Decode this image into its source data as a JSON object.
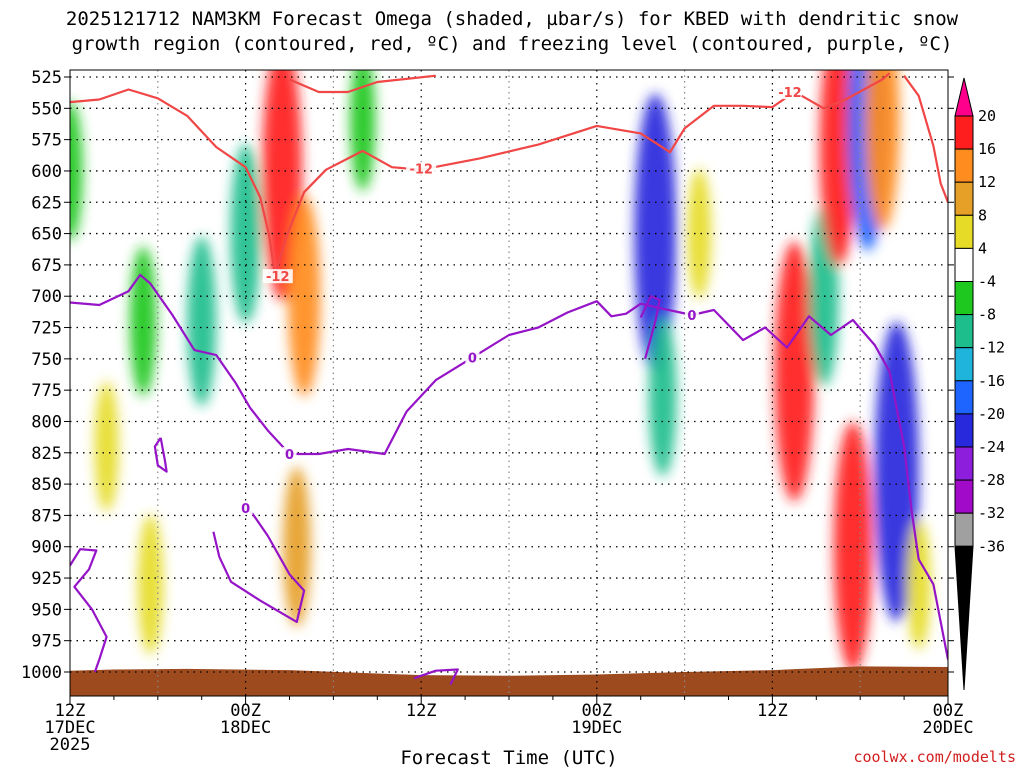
{
  "chart_data": {
    "type": "heatmap",
    "title_line1": "2025121712 NAM3KM Forecast Omega (shaded, µbar/s) for KBED with dendritic snow",
    "title_line2": "growth region (contoured, red, ºC) and freezing level (contoured, purple, ºC)",
    "xlabel": "Forecast Time (UTC)",
    "credit": "coolwx.com/modelts",
    "x_range_hours": [
      0,
      60
    ],
    "x_ticks": [
      {
        "hour": 0,
        "l1": "12Z",
        "l2": "17DEC",
        "l3": "2025"
      },
      {
        "hour": 12,
        "l1": "00Z",
        "l2": "18DEC",
        "l3": ""
      },
      {
        "hour": 24,
        "l1": "12Z",
        "l2": "",
        "l3": ""
      },
      {
        "hour": 36,
        "l1": "00Z",
        "l2": "19DEC",
        "l3": ""
      },
      {
        "hour": 48,
        "l1": "12Z",
        "l2": "",
        "l3": ""
      },
      {
        "hour": 60,
        "l1": "00Z",
        "l2": "20DEC",
        "l3": ""
      }
    ],
    "y_range_mb": [
      1000,
      525
    ],
    "y_ticks": [
      525,
      550,
      575,
      600,
      625,
      650,
      675,
      700,
      725,
      750,
      775,
      800,
      825,
      850,
      875,
      900,
      925,
      950,
      975,
      1000
    ],
    "grid": true,
    "colorbar": {
      "labels": [
        "20",
        "16",
        "12",
        "8",
        "4",
        "-4",
        "-8",
        "-12",
        "-16",
        "-20",
        "-24",
        "-28",
        "-32",
        "-36"
      ],
      "colors": [
        "#ff008c",
        "#ff1e1e",
        "#ff8c1e",
        "#e6a028",
        "#e6dc28",
        "#ffffff",
        "#1ec81e",
        "#1ebe8c",
        "#1eb4dc",
        "#1e64ff",
        "#2828dc",
        "#8c1edc",
        "#a00ac8",
        "#a0a0a0",
        "#000000"
      ]
    },
    "omega_cells": [
      {
        "t": 0.0,
        "p": 600,
        "value": -6
      },
      {
        "t": 5.0,
        "p": 720,
        "value": -7
      },
      {
        "t": 9.0,
        "p": 720,
        "value": -9
      },
      {
        "t": 12.0,
        "p": 650,
        "value": -10
      },
      {
        "t": 2.5,
        "p": 820,
        "value": 5
      },
      {
        "t": 5.5,
        "p": 930,
        "value": 6
      },
      {
        "t": 14.5,
        "p": 600,
        "value": 18
      },
      {
        "t": 16.0,
        "p": 700,
        "value": 12
      },
      {
        "t": 15.5,
        "p": 900,
        "value": 8
      },
      {
        "t": 20.0,
        "p": 560,
        "value": -6
      },
      {
        "t": 40.0,
        "p": 650,
        "value": -20
      },
      {
        "t": 40.5,
        "p": 780,
        "value": -8
      },
      {
        "t": 43.0,
        "p": 650,
        "value": 5
      },
      {
        "t": 49.5,
        "p": 760,
        "value": 18
      },
      {
        "t": 51.5,
        "p": 700,
        "value": -10
      },
      {
        "t": 52.5,
        "p": 580,
        "value": 16
      },
      {
        "t": 53.5,
        "p": 900,
        "value": 17
      },
      {
        "t": 54.5,
        "p": 560,
        "value": -18
      },
      {
        "t": 55.5,
        "p": 560,
        "value": 14
      },
      {
        "t": 56.5,
        "p": 840,
        "value": -22
      },
      {
        "t": 58.0,
        "p": 930,
        "value": 5
      }
    ],
    "ground_surface_mb": [
      {
        "t": 0,
        "p": 999
      },
      {
        "t": 3,
        "p": 998
      },
      {
        "t": 8,
        "p": 997.5
      },
      {
        "t": 15,
        "p": 998.5
      },
      {
        "t": 24,
        "p": 1002.5
      },
      {
        "t": 30,
        "p": 1003
      },
      {
        "t": 36,
        "p": 1002
      },
      {
        "t": 42,
        "p": 1000
      },
      {
        "t": 48,
        "p": 998.5
      },
      {
        "t": 54,
        "p": 995.5
      },
      {
        "t": 60,
        "p": 996
      }
    ],
    "dgz_contours": [
      {
        "label": "-12",
        "label_points": [
          {
            "t": 14.2,
            "p": 684
          },
          {
            "t": 24.0,
            "p": 598
          },
          {
            "t": 49.2,
            "p": 537
          }
        ],
        "points": [
          {
            "t": 0.0,
            "p": 545
          },
          {
            "t": 2.0,
            "p": 543
          },
          {
            "t": 4.0,
            "p": 535
          },
          {
            "t": 6.0,
            "p": 542
          },
          {
            "t": 8.0,
            "p": 556
          },
          {
            "t": 10.0,
            "p": 581
          },
          {
            "t": 12.0,
            "p": 597
          },
          {
            "t": 13.0,
            "p": 621
          },
          {
            "t": 13.6,
            "p": 651
          },
          {
            "t": 14.0,
            "p": 683
          },
          {
            "t": 14.8,
            "p": 652
          },
          {
            "t": 16.0,
            "p": 617
          },
          {
            "t": 17.5,
            "p": 599
          },
          {
            "t": 20.0,
            "p": 584
          },
          {
            "t": 22.0,
            "p": 597
          },
          {
            "t": 24.0,
            "p": 599
          },
          {
            "t": 28.0,
            "p": 590
          },
          {
            "t": 32.0,
            "p": 579
          },
          {
            "t": 36.0,
            "p": 564
          },
          {
            "t": 39.0,
            "p": 570
          },
          {
            "t": 41.0,
            "p": 585
          },
          {
            "t": 42.0,
            "p": 566
          },
          {
            "t": 44.0,
            "p": 548
          },
          {
            "t": 46.0,
            "p": 548
          },
          {
            "t": 48.0,
            "p": 549
          },
          {
            "t": 49.5,
            "p": 537
          }
        ]
      },
      {
        "label": "",
        "label_points": [],
        "points": [
          {
            "t": 15.0,
            "p": 527
          },
          {
            "t": 17.0,
            "p": 537
          },
          {
            "t": 19.0,
            "p": 537
          },
          {
            "t": 21.0,
            "p": 529
          },
          {
            "t": 25.0,
            "p": 524
          }
        ]
      },
      {
        "label": "",
        "label_points": [],
        "points": [
          {
            "t": 50.0,
            "p": 540
          },
          {
            "t": 51.5,
            "p": 550
          },
          {
            "t": 53.0,
            "p": 543
          },
          {
            "t": 55.5,
            "p": 527
          },
          {
            "t": 56.0,
            "p": 522
          }
        ]
      },
      {
        "label": "",
        "label_points": [],
        "points": [
          {
            "t": 57.0,
            "p": 524
          },
          {
            "t": 58.0,
            "p": 540
          },
          {
            "t": 59.0,
            "p": 580
          },
          {
            "t": 59.5,
            "p": 610
          },
          {
            "t": 60.0,
            "p": 625
          }
        ]
      }
    ],
    "freezing_contours": [
      {
        "label": "0",
        "label_points": [
          {
            "t": 15.0,
            "p": 826
          },
          {
            "t": 27.5,
            "p": 749
          },
          {
            "t": 42.5,
            "p": 715
          }
        ],
        "points": [
          {
            "t": 0.0,
            "p": 705
          },
          {
            "t": 2.0,
            "p": 707
          },
          {
            "t": 4.0,
            "p": 696
          },
          {
            "t": 4.8,
            "p": 683
          },
          {
            "t": 5.5,
            "p": 690
          },
          {
            "t": 7.0,
            "p": 715
          },
          {
            "t": 8.5,
            "p": 743
          },
          {
            "t": 10.0,
            "p": 747
          },
          {
            "t": 11.3,
            "p": 769
          },
          {
            "t": 12.3,
            "p": 789
          },
          {
            "t": 13.5,
            "p": 807
          },
          {
            "t": 15.0,
            "p": 826
          },
          {
            "t": 17.0,
            "p": 826
          },
          {
            "t": 19.0,
            "p": 822
          },
          {
            "t": 21.5,
            "p": 826
          },
          {
            "t": 23.0,
            "p": 792
          },
          {
            "t": 25.0,
            "p": 767
          },
          {
            "t": 27.5,
            "p": 749
          },
          {
            "t": 30.0,
            "p": 731
          },
          {
            "t": 32.0,
            "p": 725
          },
          {
            "t": 34.0,
            "p": 713
          },
          {
            "t": 36.0,
            "p": 704
          },
          {
            "t": 37.0,
            "p": 716
          },
          {
            "t": 38.0,
            "p": 714
          },
          {
            "t": 39.0,
            "p": 706
          },
          {
            "t": 40.5,
            "p": 710
          },
          {
            "t": 42.5,
            "p": 715
          },
          {
            "t": 44.0,
            "p": 711
          },
          {
            "t": 46.0,
            "p": 735
          },
          {
            "t": 47.5,
            "p": 725
          },
          {
            "t": 49.0,
            "p": 741
          },
          {
            "t": 50.5,
            "p": 716
          },
          {
            "t": 52.0,
            "p": 731
          },
          {
            "t": 53.5,
            "p": 719
          },
          {
            "t": 55.0,
            "p": 739
          },
          {
            "t": 56.0,
            "p": 760
          },
          {
            "t": 56.5,
            "p": 790
          },
          {
            "t": 57.0,
            "p": 820
          },
          {
            "t": 57.5,
            "p": 870
          },
          {
            "t": 58.0,
            "p": 910
          },
          {
            "t": 59.0,
            "p": 930
          },
          {
            "t": 60.0,
            "p": 990
          }
        ]
      },
      {
        "label": "0",
        "label_points": [
          {
            "t": 12.0,
            "p": 869
          }
        ],
        "points": [
          {
            "t": 9.8,
            "p": 888
          },
          {
            "t": 10.2,
            "p": 908
          },
          {
            "t": 11.0,
            "p": 928
          },
          {
            "t": 13.0,
            "p": 943
          },
          {
            "t": 15.5,
            "p": 960
          },
          {
            "t": 16.0,
            "p": 935
          },
          {
            "t": 15.0,
            "p": 922
          },
          {
            "t": 13.5,
            "p": 891
          },
          {
            "t": 12.5,
            "p": 874
          },
          {
            "t": 12.0,
            "p": 869
          }
        ]
      },
      {
        "label": "",
        "label_points": [],
        "points": [
          {
            "t": 0.0,
            "p": 915
          },
          {
            "t": 0.7,
            "p": 902
          },
          {
            "t": 1.8,
            "p": 903
          },
          {
            "t": 1.3,
            "p": 918
          },
          {
            "t": 0.3,
            "p": 932
          },
          {
            "t": 1.5,
            "p": 950
          },
          {
            "t": 2.5,
            "p": 972
          },
          {
            "t": 2.0,
            "p": 990
          },
          {
            "t": 1.7,
            "p": 1000
          }
        ]
      },
      {
        "label": "",
        "label_points": [],
        "points": [
          {
            "t": 6.2,
            "p": 813
          },
          {
            "t": 6.5,
            "p": 832
          },
          {
            "t": 6.6,
            "p": 840
          },
          {
            "t": 6.0,
            "p": 835
          },
          {
            "t": 5.8,
            "p": 820
          },
          {
            "t": 6.2,
            "p": 813
          }
        ]
      },
      {
        "label": "",
        "label_points": [],
        "points": [
          {
            "t": 23.5,
            "p": 1005
          },
          {
            "t": 25.0,
            "p": 999
          },
          {
            "t": 26.5,
            "p": 998
          },
          {
            "t": 26.0,
            "p": 1010
          }
        ]
      },
      {
        "label": "",
        "label_points": [],
        "points": [
          {
            "t": 39.0,
            "p": 717
          },
          {
            "t": 39.7,
            "p": 700
          },
          {
            "t": 40.3,
            "p": 703
          },
          {
            "t": 40.0,
            "p": 720
          },
          {
            "t": 39.6,
            "p": 737
          },
          {
            "t": 39.3,
            "p": 750
          }
        ]
      }
    ]
  }
}
